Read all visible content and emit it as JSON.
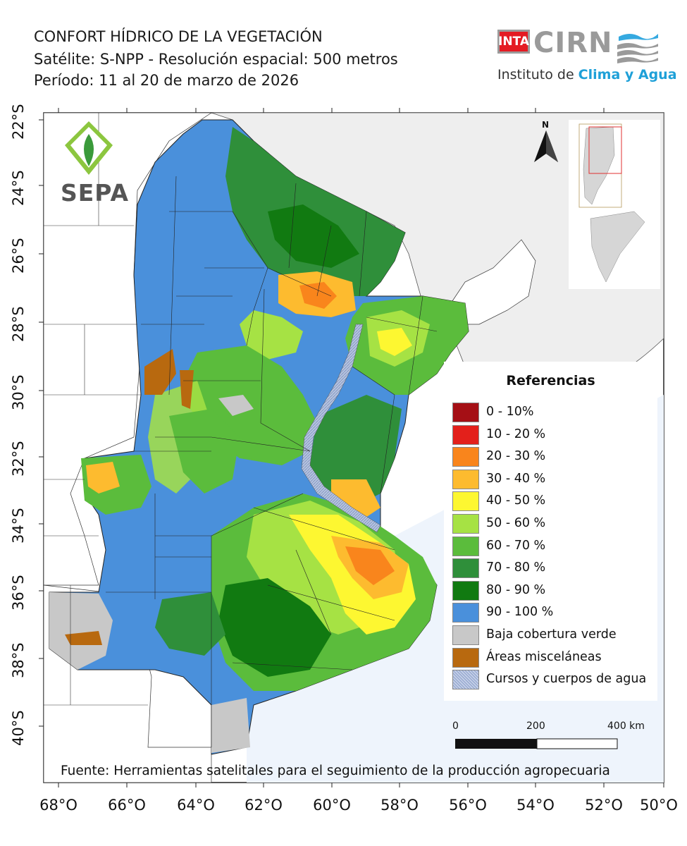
{
  "header": {
    "title": "CONFORT HÍDRICO DE LA VEGETACIÓN",
    "line2": "Satélite: S-NPP - Resolución espacial: 500 metros",
    "line3": "Período: 11 al 20 de marzo de 2026"
  },
  "logos": {
    "inta": "INTA",
    "cirn": "CIRN",
    "institute_prefix": "Instituto de ",
    "institute_highlight": "Clima y Agua",
    "sepa": "SEPA"
  },
  "north": "N",
  "axes": {
    "lat_labels": [
      "22°S",
      "24°S",
      "26°S",
      "28°S",
      "30°S",
      "32°S",
      "34°S",
      "36°S",
      "38°S",
      "40°S"
    ],
    "lon_labels": [
      "68°O",
      "66°O",
      "64°O",
      "62°O",
      "60°O",
      "58°O",
      "56°O",
      "54°O",
      "52°O",
      "50°O"
    ]
  },
  "legend": {
    "title": "Referencias",
    "items": [
      {
        "label": "0 - 10%",
        "color": "#a50f15"
      },
      {
        "label": "10 - 20 %",
        "color": "#e3201b"
      },
      {
        "label": "20 - 30 %",
        "color": "#f9851c"
      },
      {
        "label": "30 - 40 %",
        "color": "#fdbb2f"
      },
      {
        "label": "40 - 50 %",
        "color": "#fdf731"
      },
      {
        "label": "50 - 60 %",
        "color": "#a6e244"
      },
      {
        "label": "60 - 70 %",
        "color": "#5bbc3c"
      },
      {
        "label": "70 - 80 %",
        "color": "#2f8f3a"
      },
      {
        "label": "80 - 90 %",
        "color": "#117a11"
      },
      {
        "label": "90 - 100 %",
        "color": "#4a90db"
      },
      {
        "label": "Baja cobertura verde",
        "color": "#c8c8c8"
      },
      {
        "label": "Áreas misceláneas",
        "color": "#b8690f"
      },
      {
        "label": "Cursos y cuerpos de agua",
        "color": "#a8b8d8"
      }
    ]
  },
  "scale_bar": {
    "labels": [
      "0",
      "200",
      "400 km"
    ]
  },
  "source": "Fuente: Herramientas satelitales para el seguimiento de la producción agropecuaria"
}
